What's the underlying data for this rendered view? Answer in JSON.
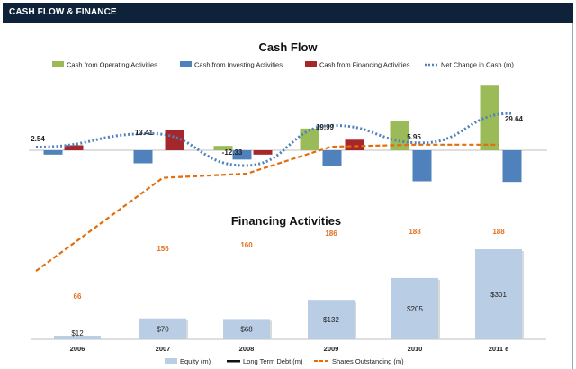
{
  "header": {
    "title": "CASH FLOW & FINANCE"
  },
  "colors": {
    "header_bg": "#0e2239",
    "operating": "#9bbb59",
    "investing": "#4f81bd",
    "financing": "#a5272b",
    "net_change": "#4f81bd",
    "equity": "#b9cde5",
    "long_term_debt": "#111111",
    "shares": "#e46c0a"
  },
  "chart_data": [
    {
      "type": "bar",
      "title": "Cash Flow",
      "categories": [
        "2006",
        "2007",
        "2008",
        "2009",
        "2010",
        "2011e"
      ],
      "series": [
        {
          "name": "Cash from Operating Activities",
          "values": [
            0,
            0,
            3.5,
            17.5,
            23.5,
            52
          ]
        },
        {
          "name": "Cash from Investing Activities",
          "values": [
            -3.5,
            -10.5,
            -7.5,
            -12.5,
            -25,
            -25.5
          ]
        },
        {
          "name": "Cash from Financing Activities",
          "values": [
            4,
            16.5,
            -3.5,
            8.5,
            0,
            0
          ]
        },
        {
          "name": "Net Change in Cash (m)",
          "line": true,
          "values": [
            2.54,
            13.41,
            -12.33,
            19.99,
            5.95,
            29.64
          ]
        }
      ],
      "data_labels": [
        "2.54",
        "13.41",
        "-12.33",
        "19.99",
        "5.95",
        "29.64"
      ],
      "ylim": [
        -30,
        55
      ]
    },
    {
      "type": "bar",
      "title": "Financing Activities",
      "categories": [
        "2006",
        "2007",
        "2008",
        "2009",
        "2010",
        "2011 e"
      ],
      "series": [
        {
          "name": "Equity (m)",
          "values": [
            12,
            70,
            68,
            132,
            205,
            301
          ]
        },
        {
          "name": "Long Term Debt (m)",
          "values": [
            0,
            0,
            0,
            0,
            0,
            0
          ]
        },
        {
          "name": "Shares Outstanding (m)",
          "line": true,
          "values": [
            66,
            156,
            160,
            186,
            188,
            188
          ]
        }
      ],
      "bar_labels": [
        "$12",
        "$70",
        "$68",
        "$132",
        "$205",
        "$301"
      ],
      "line_labels": [
        "66",
        "156",
        "160",
        "186",
        "188",
        "188"
      ],
      "ylim_bars": [
        0,
        340
      ],
      "ylim_line": [
        0,
        220
      ]
    }
  ]
}
